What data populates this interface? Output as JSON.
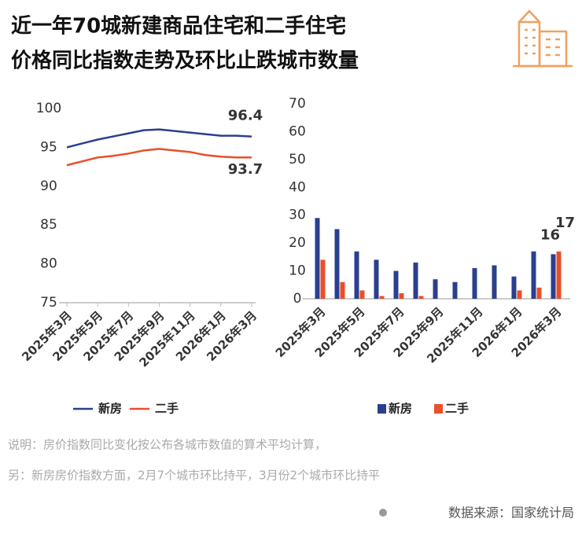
{
  "title_lines": [
    "近一年70城新建商品住宅和二手住宅",
    "价格同比指数走势及环比止跌城市数量"
  ],
  "chart_data": [
    {
      "type": "line",
      "categories": [
        "2025年3月",
        null,
        "2025年5月",
        null,
        "2025年7月",
        null,
        "2025年9月",
        null,
        "2025年11月",
        null,
        "2026年1月",
        null,
        "2026年3月"
      ],
      "series": [
        {
          "name": "新房",
          "color": "#2b3f8f",
          "values": [
            95.0,
            95.5,
            96.0,
            96.4,
            96.8,
            97.2,
            97.3,
            97.1,
            96.9,
            96.7,
            96.5,
            96.5,
            96.4
          ]
        },
        {
          "name": "二手",
          "color": "#e8502a",
          "values": [
            92.7,
            93.2,
            93.7,
            93.9,
            94.2,
            94.6,
            94.8,
            94.6,
            94.4,
            94.0,
            93.8,
            93.7,
            93.7
          ]
        }
      ],
      "ylim": [
        75,
        100
      ],
      "yticks": [
        75,
        80,
        85,
        90,
        95,
        100
      ],
      "data_labels": "last",
      "legend": "bottom"
    },
    {
      "type": "bar",
      "categories": [
        "2025年3月",
        null,
        "2025年5月",
        null,
        "2025年7月",
        null,
        "2025年9月",
        null,
        "2025年11月",
        null,
        "2026年1月",
        null,
        "2026年3月"
      ],
      "series": [
        {
          "name": "新房",
          "color": "#2b3f8f",
          "values": [
            29,
            25,
            17,
            14,
            10,
            13,
            7,
            6,
            11,
            12,
            8,
            17,
            16
          ]
        },
        {
          "name": "二手",
          "color": "#e8502a",
          "values": [
            14,
            6,
            3,
            1,
            2,
            1,
            0,
            0,
            0,
            0,
            3,
            4,
            17
          ]
        }
      ],
      "ylim": [
        0,
        70
      ],
      "yticks": [
        0,
        10,
        20,
        30,
        40,
        50,
        60,
        70
      ],
      "data_labels": "last",
      "legend": "bottom"
    }
  ],
  "notes": [
    "说明：房价指数同比变化按公布各城市数值的算术平均计算，",
    "另：新房房价指数方面，2月7个城市环比持平，3月份2个城市环比持平"
  ],
  "source": "数据来源：国家统计局"
}
